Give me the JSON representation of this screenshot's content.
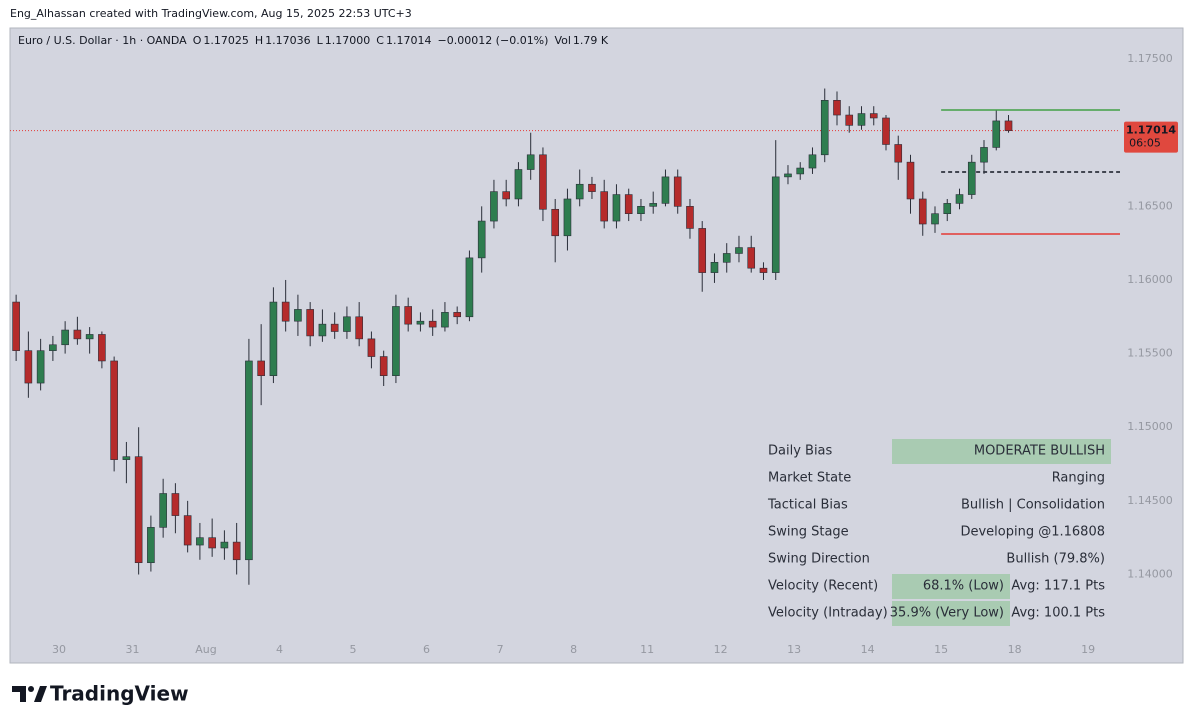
{
  "header": {
    "attribution": "Eng_Alhassan created with TradingView.com, Aug 15, 2025 22:53 UTC+3"
  },
  "legend": {
    "symbol": "Euro / U.S. Dollar · 1h · OANDA",
    "items": [
      {
        "key": "O",
        "value": "1.17025"
      },
      {
        "key": "H",
        "value": "1.17036"
      },
      {
        "key": "L",
        "value": "1.17000"
      },
      {
        "key": "C",
        "value": "1.17014"
      }
    ],
    "change": "−0.00012 (−0.01%)",
    "volume": {
      "key": "Vol",
      "value": "1.79 K"
    }
  },
  "chart_data": {
    "type": "candlestick",
    "up_color": "#2e7d4f",
    "down_color": "#b52b2b",
    "grid": false,
    "xlim": [
      0,
      90.6
    ],
    "ylim": [
      1.13399,
      1.17711
    ],
    "xticks": [
      {
        "value": 4,
        "label": "30"
      },
      {
        "value": 10,
        "label": "31"
      },
      {
        "value": 16,
        "label": "Aug"
      },
      {
        "value": 22,
        "label": "4"
      },
      {
        "value": 28,
        "label": "5"
      },
      {
        "value": 34,
        "label": "6"
      },
      {
        "value": 40,
        "label": "7"
      },
      {
        "value": 46,
        "label": "8"
      },
      {
        "value": 52,
        "label": "11"
      },
      {
        "value": 58,
        "label": "12"
      },
      {
        "value": 64,
        "label": "13"
      },
      {
        "value": 70,
        "label": "14"
      },
      {
        "value": 76,
        "label": "15"
      },
      {
        "value": 82,
        "label": "18"
      },
      {
        "value": 88,
        "label": "19"
      }
    ],
    "yticks": [
      {
        "value": 1.175,
        "label": "1.17500"
      },
      {
        "value": 1.17,
        "label": "1.17000"
      },
      {
        "value": 1.165,
        "label": "1.16500"
      },
      {
        "value": 1.16,
        "label": "1.16000"
      },
      {
        "value": 1.155,
        "label": "1.15500"
      },
      {
        "value": 1.15,
        "label": "1.15000"
      },
      {
        "value": 1.145,
        "label": "1.14500"
      },
      {
        "value": 1.14,
        "label": "1.14000"
      }
    ],
    "last_price_label": "1.17014",
    "countdown": "06:05",
    "levels": [
      {
        "value": 1.17154,
        "color": "#43a047",
        "style": "solid",
        "from_x": 76
      },
      {
        "value": 1.16733,
        "color": "#131722",
        "style": "dashed",
        "from_x": 76
      },
      {
        "value": 1.16312,
        "color": "#e53935",
        "style": "solid",
        "from_x": 76
      }
    ],
    "ohlc": [
      [
        1.1585,
        1.159,
        1.1545,
        1.1552
      ],
      [
        1.1552,
        1.1565,
        1.152,
        1.153
      ],
      [
        1.153,
        1.156,
        1.1525,
        1.1552
      ],
      [
        1.1552,
        1.1562,
        1.1545,
        1.1556
      ],
      [
        1.1556,
        1.1572,
        1.155,
        1.1566
      ],
      [
        1.1566,
        1.1575,
        1.1556,
        1.156
      ],
      [
        1.156,
        1.1568,
        1.155,
        1.1563
      ],
      [
        1.1563,
        1.1565,
        1.154,
        1.1545
      ],
      [
        1.1545,
        1.1548,
        1.147,
        1.1478
      ],
      [
        1.1478,
        1.149,
        1.1462,
        1.148
      ],
      [
        1.148,
        1.15,
        1.14,
        1.1408
      ],
      [
        1.1408,
        1.144,
        1.1402,
        1.1432
      ],
      [
        1.1432,
        1.1465,
        1.1425,
        1.1455
      ],
      [
        1.1455,
        1.1462,
        1.1428,
        1.144
      ],
      [
        1.144,
        1.145,
        1.1415,
        1.142
      ],
      [
        1.142,
        1.1435,
        1.141,
        1.1425
      ],
      [
        1.1425,
        1.1438,
        1.1412,
        1.1418
      ],
      [
        1.1418,
        1.143,
        1.141,
        1.1422
      ],
      [
        1.1422,
        1.1435,
        1.14,
        1.141
      ],
      [
        1.141,
        1.156,
        1.1393,
        1.1545
      ],
      [
        1.1545,
        1.157,
        1.1515,
        1.1535
      ],
      [
        1.1535,
        1.1595,
        1.153,
        1.1585
      ],
      [
        1.1585,
        1.16,
        1.1565,
        1.1572
      ],
      [
        1.1572,
        1.159,
        1.1562,
        1.158
      ],
      [
        1.158,
        1.1585,
        1.1555,
        1.1562
      ],
      [
        1.1562,
        1.158,
        1.1558,
        1.157
      ],
      [
        1.157,
        1.1578,
        1.156,
        1.1565
      ],
      [
        1.1565,
        1.1582,
        1.156,
        1.1575
      ],
      [
        1.1575,
        1.1585,
        1.1555,
        1.156
      ],
      [
        1.156,
        1.1565,
        1.154,
        1.1548
      ],
      [
        1.1548,
        1.1552,
        1.1528,
        1.1535
      ],
      [
        1.1535,
        1.159,
        1.153,
        1.1582
      ],
      [
        1.1582,
        1.1588,
        1.1565,
        1.157
      ],
      [
        1.157,
        1.1578,
        1.1565,
        1.1572
      ],
      [
        1.1572,
        1.158,
        1.1562,
        1.1568
      ],
      [
        1.1568,
        1.1585,
        1.1565,
        1.1578
      ],
      [
        1.1578,
        1.1582,
        1.157,
        1.1575
      ],
      [
        1.1575,
        1.162,
        1.1572,
        1.1615
      ],
      [
        1.1615,
        1.165,
        1.1605,
        1.164
      ],
      [
        1.164,
        1.1668,
        1.1635,
        1.166
      ],
      [
        1.166,
        1.1668,
        1.165,
        1.1655
      ],
      [
        1.1655,
        1.168,
        1.165,
        1.1675
      ],
      [
        1.1675,
        1.17,
        1.1668,
        1.1685
      ],
      [
        1.1685,
        1.169,
        1.164,
        1.1648
      ],
      [
        1.1648,
        1.1655,
        1.1612,
        1.163
      ],
      [
        1.163,
        1.1662,
        1.162,
        1.1655
      ],
      [
        1.1655,
        1.1675,
        1.165,
        1.1665
      ],
      [
        1.1665,
        1.167,
        1.1655,
        1.166
      ],
      [
        1.166,
        1.1668,
        1.1635,
        1.164
      ],
      [
        1.164,
        1.1665,
        1.1635,
        1.1658
      ],
      [
        1.1658,
        1.1662,
        1.164,
        1.1645
      ],
      [
        1.1645,
        1.1655,
        1.164,
        1.165
      ],
      [
        1.165,
        1.166,
        1.1645,
        1.1652
      ],
      [
        1.1652,
        1.1675,
        1.165,
        1.167
      ],
      [
        1.167,
        1.1675,
        1.1645,
        1.165
      ],
      [
        1.165,
        1.1655,
        1.1628,
        1.1635
      ],
      [
        1.1635,
        1.164,
        1.1592,
        1.1605
      ],
      [
        1.1605,
        1.1618,
        1.1598,
        1.1612
      ],
      [
        1.1612,
        1.1625,
        1.1605,
        1.1618
      ],
      [
        1.1618,
        1.163,
        1.1612,
        1.1622
      ],
      [
        1.1622,
        1.163,
        1.1605,
        1.1608
      ],
      [
        1.1608,
        1.1612,
        1.16,
        1.1605
      ],
      [
        1.1605,
        1.1695,
        1.16,
        1.167
      ],
      [
        1.167,
        1.1678,
        1.1665,
        1.1672
      ],
      [
        1.1672,
        1.168,
        1.1668,
        1.1676
      ],
      [
        1.1676,
        1.169,
        1.1672,
        1.1685
      ],
      [
        1.1685,
        1.173,
        1.168,
        1.1722
      ],
      [
        1.1722,
        1.1728,
        1.1705,
        1.1712
      ],
      [
        1.1712,
        1.1718,
        1.17,
        1.1705
      ],
      [
        1.1705,
        1.1718,
        1.1702,
        1.1713
      ],
      [
        1.1713,
        1.1718,
        1.1705,
        1.171
      ],
      [
        1.171,
        1.1712,
        1.1688,
        1.1692
      ],
      [
        1.1692,
        1.1698,
        1.1668,
        1.168
      ],
      [
        1.168,
        1.1685,
        1.1645,
        1.1655
      ],
      [
        1.1655,
        1.166,
        1.163,
        1.1638
      ],
      [
        1.1638,
        1.165,
        1.1632,
        1.1645
      ],
      [
        1.1645,
        1.1655,
        1.164,
        1.1652
      ],
      [
        1.1652,
        1.1662,
        1.1648,
        1.1658
      ],
      [
        1.1658,
        1.1685,
        1.1655,
        1.168
      ],
      [
        1.168,
        1.1695,
        1.1672,
        1.169
      ],
      [
        1.169,
        1.1715,
        1.1688,
        1.1708
      ],
      [
        1.1708,
        1.1712,
        1.17,
        1.17014
      ]
    ]
  },
  "table": {
    "rows": [
      {
        "label": "Daily Bias",
        "value": "MODERATE BULLISH",
        "highlight": true
      },
      {
        "label": "Market State",
        "value": "Ranging",
        "highlight": false
      },
      {
        "label": "Tactical Bias",
        "value": "Bullish | Consolidation",
        "highlight": false
      },
      {
        "label": "Swing Stage",
        "value": "Developing @1.16808",
        "highlight": false
      },
      {
        "label": "Swing Direction",
        "value": "Bullish (79.8%)",
        "highlight": false
      },
      {
        "label": "Velocity (Recent)",
        "value": "68.1% (Low)",
        "highlight": true,
        "avg": "Avg: 117.1 Pts"
      },
      {
        "label": "Velocity (Intraday)",
        "value": "35.9% (Very Low)",
        "highlight": true,
        "avg": "Avg: 100.1 Pts"
      }
    ]
  },
  "footer": {
    "brand": "TradingView"
  }
}
